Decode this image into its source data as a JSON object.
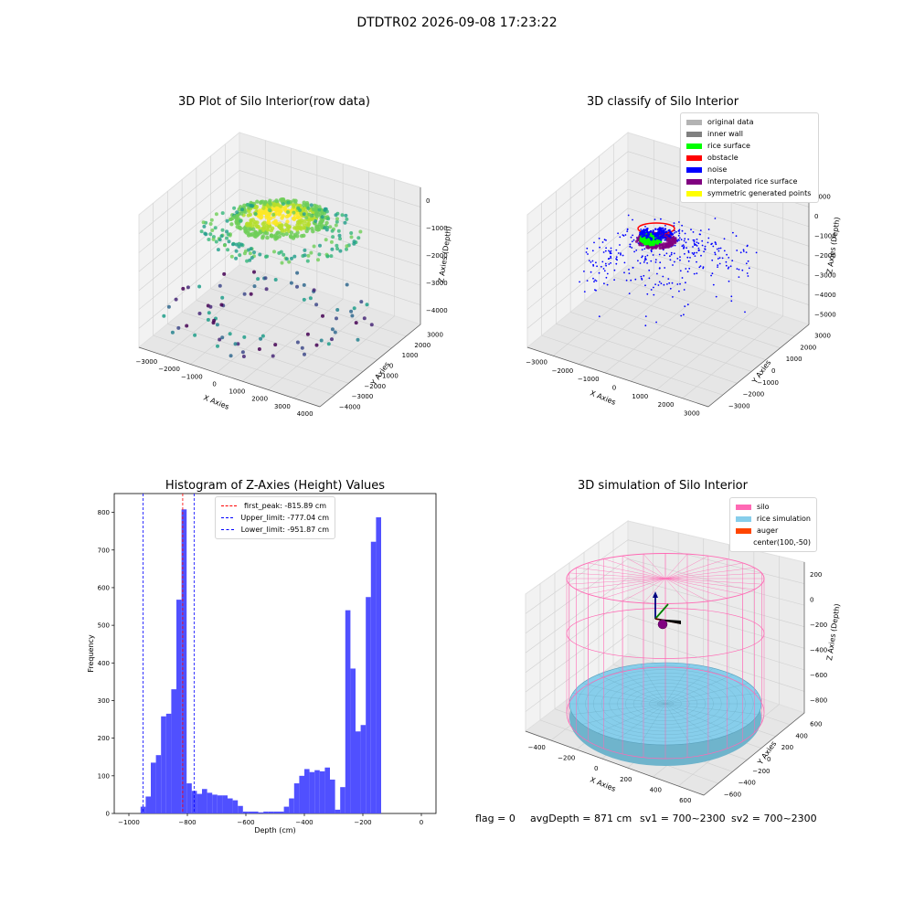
{
  "figure_title": "DTDTR02 2026-09-08 17:23:22",
  "colors": {
    "original_data": "#b3b3b3",
    "inner_wall": "#808080",
    "rice_surface": "#00ff00",
    "obstacle": "#ff0000",
    "noise": "#0000ff",
    "interpolated_rice_surface": "#800080",
    "symmetric_generated_points": "#ffff00",
    "hist_bar": "#5050ff",
    "silo": "#ff69b4",
    "rice_simulation": "#87ceeb",
    "auger": "#ff4500"
  },
  "panels": {
    "p1": {
      "title": "3D Plot of Silo Interior(row data)",
      "xlabel": "X Axies",
      "ylabel": "Y Axies",
      "zlabel": "Z Axies (Depth)",
      "xticks": [
        "−3000",
        "−2000",
        "−1000",
        "0",
        "1000",
        "2000",
        "3000",
        "4000"
      ],
      "yticks": [
        "−4000",
        "−3000",
        "−2000",
        "−1000",
        "0",
        "1000",
        "2000",
        "3000"
      ],
      "zticks": [
        "0",
        "−1000",
        "−2000",
        "−3000",
        "−4000"
      ]
    },
    "p2": {
      "title": "3D classify of Silo Interior",
      "xlabel": "X Axies",
      "ylabel": "Y Axies",
      "zlabel": "Z Axies (Depth)",
      "xticks": [
        "−3000",
        "−2000",
        "−1000",
        "0",
        "1000",
        "2000",
        "3000"
      ],
      "yticks": [
        "−3000",
        "−2000",
        "−1000",
        "0",
        "1000",
        "2000",
        "3000"
      ],
      "zticks": [
        "1000",
        "0",
        "−1000",
        "−2000",
        "−3000",
        "−4000",
        "−5000"
      ],
      "legend": [
        {
          "label": "original data",
          "color": "#b3b3b3"
        },
        {
          "label": "inner wall",
          "color": "#808080"
        },
        {
          "label": "rice surface",
          "color": "#00ff00"
        },
        {
          "label": "obstacle",
          "color": "#ff0000"
        },
        {
          "label": "noise",
          "color": "#0000ff"
        },
        {
          "label": "interpolated rice surface",
          "color": "#800080"
        },
        {
          "label": "symmetric generated points",
          "color": "#ffff00"
        }
      ]
    },
    "p4": {
      "title": "3D simulation of Silo Interior",
      "xlabel": "X Axies",
      "ylabel": "Y Axies",
      "zlabel": "Z Axies (Depth)",
      "xticks": [
        "−400",
        "−200",
        "0",
        "200",
        "400",
        "600"
      ],
      "yticks": [
        "−600",
        "−400",
        "−200",
        "0",
        "200",
        "400",
        "600"
      ],
      "zticks": [
        "200",
        "0",
        "−200",
        "−400",
        "−600",
        "−800"
      ],
      "legend": [
        {
          "label": "silo",
          "color": "#ff69b4"
        },
        {
          "label": "rice simulation",
          "color": "#87ceeb"
        },
        {
          "label": "auger",
          "color": "#ff4500"
        },
        {
          "label": "center(100,-50)",
          "color": ""
        }
      ]
    }
  },
  "chart_data": [
    {
      "type": "histogram",
      "title": "Histogram of Z-Axies (Height) Values",
      "xlabel": "Depth (cm)",
      "ylabel": "Frequency",
      "xlim": [
        -1050,
        50
      ],
      "ylim": [
        0,
        850
      ],
      "xticks": [
        -1000,
        -800,
        -600,
        -400,
        -200,
        0
      ],
      "yticks": [
        0,
        100,
        200,
        300,
        400,
        500,
        600,
        700,
        800
      ],
      "bin_start": -960,
      "bin_width": 17.5,
      "values": [
        18,
        45,
        135,
        155,
        258,
        265,
        330,
        568,
        808,
        80,
        60,
        52,
        65,
        55,
        50,
        48,
        48,
        40,
        35,
        20,
        5,
        5,
        5,
        3,
        5,
        5,
        5,
        5,
        18,
        40,
        80,
        100,
        118,
        110,
        115,
        112,
        122,
        90,
        10,
        70,
        540,
        385,
        218,
        235,
        575,
        722,
        787
      ],
      "vlines": [
        {
          "label": "first_peak: -815.89 cm",
          "x": -815.89,
          "color": "#ff0000"
        },
        {
          "label": "Upper_limit: -777.04 cm",
          "x": -777.04,
          "color": "#0000ff"
        },
        {
          "label": "Lower_limit: -951.87 cm",
          "x": -951.87,
          "color": "#0000ff"
        }
      ]
    }
  ],
  "status": {
    "flag": "flag = 0",
    "avg_depth": "avgDepth = 871 cm",
    "sv1": "sv1 = 700~2300",
    "sv2": "sv2 = 700~2300"
  }
}
